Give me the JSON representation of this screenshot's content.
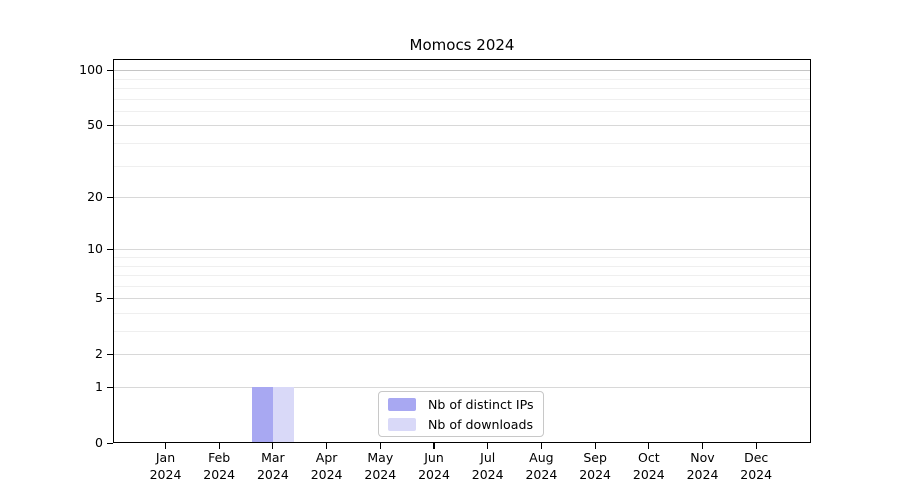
{
  "title": "Momocs 2024",
  "colors": {
    "background": "#ffffff",
    "bar_distinct_ips": "#a8a8f2",
    "bar_downloads": "#d9d9f8",
    "grid_major": "#d8d8d8",
    "grid_top": "#c5c5c5",
    "grid_minor": "#efefef",
    "axis": "#000000",
    "legend_border": "#c8c8c8",
    "text": "#000000"
  },
  "chart_data": {
    "type": "bar",
    "title": "Momocs 2024",
    "categories": [
      "Jan 2024",
      "Feb 2024",
      "Mar 2024",
      "Apr 2024",
      "May 2024",
      "Jun 2024",
      "Jul 2024",
      "Aug 2024",
      "Sep 2024",
      "Oct 2024",
      "Nov 2024",
      "Dec 2024"
    ],
    "series": [
      {
        "name": "Nb of distinct IPs",
        "color": "#a8a8f2",
        "values": [
          0,
          0,
          1,
          0,
          0,
          0,
          0,
          0,
          0,
          0,
          0,
          0
        ]
      },
      {
        "name": "Nb of downloads",
        "color": "#d9d9f8",
        "values": [
          0,
          0,
          1,
          0,
          0,
          0,
          0,
          0,
          0,
          0,
          0,
          0
        ]
      }
    ],
    "xlabel": "",
    "ylabel": "",
    "y_axis": {
      "scale": "log1p",
      "ticks": [
        0,
        1,
        2,
        5,
        10,
        20,
        50,
        100
      ],
      "minor_ticks": [
        3,
        4,
        6,
        7,
        8,
        9,
        30,
        40,
        60,
        70,
        80,
        90
      ],
      "ylim": [
        0,
        115
      ]
    },
    "grid": true,
    "legend": {
      "position": "bottom-center",
      "entries": [
        "Nb of distinct IPs",
        "Nb of downloads"
      ]
    }
  }
}
